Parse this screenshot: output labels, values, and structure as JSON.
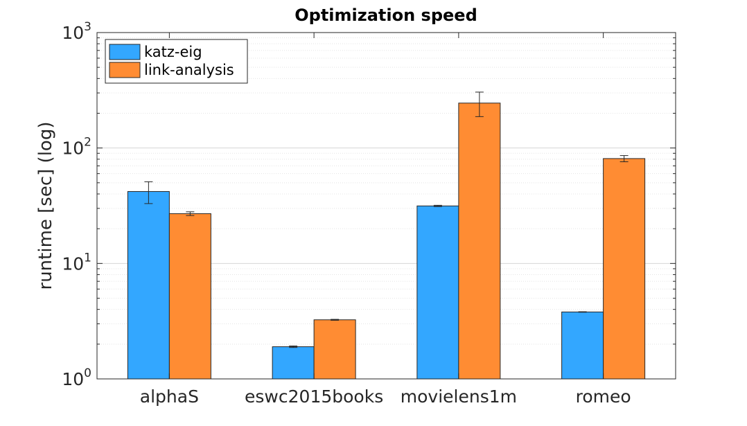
{
  "chart_data": {
    "type": "bar",
    "title": "Optimization speed",
    "xlabel": "",
    "ylabel": "runtime [sec] (log)",
    "yscale": "log",
    "ylim": [
      1,
      1000
    ],
    "grid": true,
    "legend_position": "top-left",
    "categories": [
      "alphaS",
      "eswc2015books",
      "movielens1m",
      "romeo"
    ],
    "yticks": [
      {
        "value": 1,
        "base": "10",
        "exp": "0"
      },
      {
        "value": 10,
        "base": "10",
        "exp": "1"
      },
      {
        "value": 100,
        "base": "10",
        "exp": "2"
      },
      {
        "value": 1000,
        "base": "10",
        "exp": "3"
      }
    ],
    "series": [
      {
        "name": "katz-eig",
        "color": "#33a7ff",
        "values": [
          42,
          1.9,
          31.5,
          3.8
        ],
        "err_low": [
          33,
          1.87,
          31.1,
          3.78
        ],
        "err_high": [
          51,
          1.93,
          31.9,
          3.82
        ]
      },
      {
        "name": "link-analysis",
        "color": "#ff8c33",
        "values": [
          27,
          3.25,
          245,
          81
        ],
        "err_low": [
          26,
          3.22,
          187,
          76
        ],
        "err_high": [
          28,
          3.28,
          305,
          86
        ]
      }
    ]
  }
}
